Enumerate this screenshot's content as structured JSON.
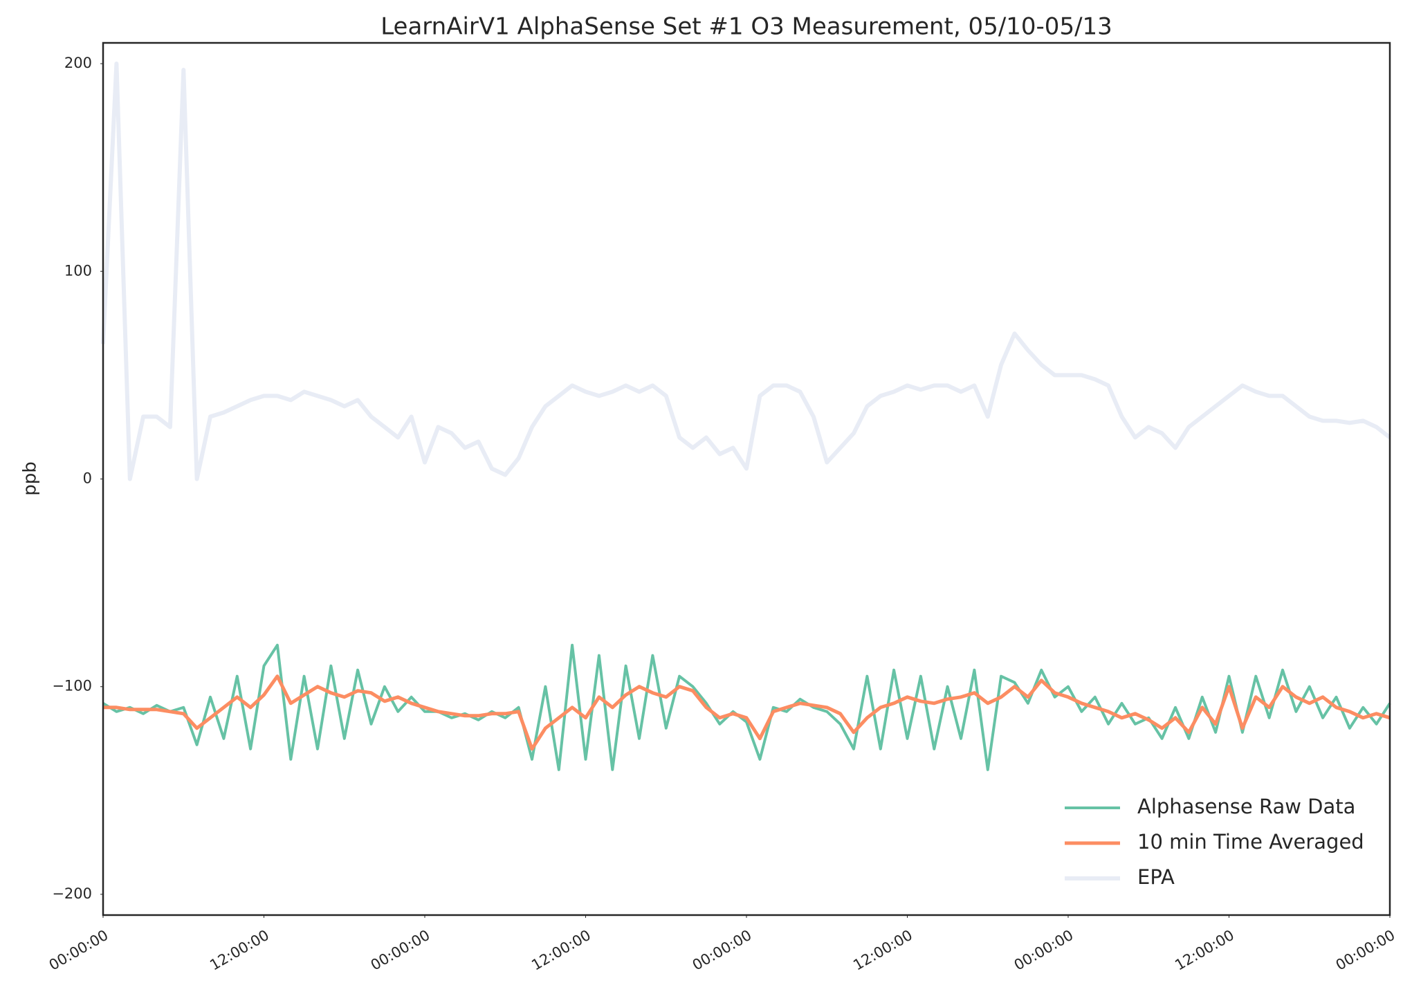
{
  "chart_data": {
    "type": "line",
    "title": "LearnAirV1 AlphaSense Set #1 O3 Measurement, 05/10-05/13",
    "y_label": "ppb",
    "x": [
      0,
      1,
      2,
      3,
      4,
      5,
      6,
      7,
      8,
      9,
      10,
      11,
      12,
      13,
      14,
      15,
      16,
      17,
      18,
      19,
      20,
      21,
      22,
      23,
      24,
      25,
      26,
      27,
      28,
      29,
      30,
      31,
      32,
      33,
      34,
      35,
      36,
      37,
      38,
      39,
      40,
      41,
      42,
      43,
      44,
      45,
      46,
      47,
      48,
      49,
      50,
      51,
      52,
      53,
      54,
      55,
      56,
      57,
      58,
      59,
      60,
      61,
      62,
      63,
      64,
      65,
      66,
      67,
      68,
      69,
      70,
      71,
      72,
      73,
      74,
      75,
      76,
      77,
      78,
      79,
      80,
      81,
      82,
      83,
      84,
      85,
      86,
      87,
      88,
      89,
      90,
      91,
      92,
      93,
      94,
      95,
      96
    ],
    "xlim": [
      0,
      96
    ],
    "xticks": [
      {
        "value": 0,
        "label": "00:00:00"
      },
      {
        "value": 12,
        "label": "12:00:00"
      },
      {
        "value": 24,
        "label": "00:00:00"
      },
      {
        "value": 36,
        "label": "12:00:00"
      },
      {
        "value": 48,
        "label": "00:00:00"
      },
      {
        "value": 60,
        "label": "12:00:00"
      },
      {
        "value": 72,
        "label": "00:00:00"
      },
      {
        "value": 84,
        "label": "12:00:00"
      },
      {
        "value": 96,
        "label": "00:00:00"
      }
    ],
    "ylim": [
      -210,
      210
    ],
    "yticks": [
      {
        "value": -200,
        "label": "−200"
      },
      {
        "value": -100,
        "label": "−100"
      },
      0,
      100,
      200
    ],
    "legend": "lower right",
    "series": [
      {
        "name": "Alphasense Raw Data",
        "color": "#66c2a5",
        "width": 4,
        "values": [
          -108,
          -112,
          -110,
          -113,
          -109,
          -112,
          -110,
          -128,
          -105,
          -125,
          -95,
          -130,
          -90,
          -80,
          -135,
          -95,
          -130,
          -90,
          -125,
          -92,
          -118,
          -100,
          -112,
          -105,
          -112,
          -112,
          -115,
          -113,
          -116,
          -112,
          -115,
          -110,
          -135,
          -100,
          -140,
          -80,
          -135,
          -85,
          -140,
          -90,
          -125,
          -85,
          -120,
          -95,
          -100,
          -108,
          -118,
          -112,
          -117,
          -135,
          -110,
          -112,
          -106,
          -110,
          -112,
          -118,
          -130,
          -95,
          -130,
          -92,
          -125,
          -95,
          -130,
          -100,
          -125,
          -92,
          -140,
          -95,
          -98,
          -108,
          -92,
          -105,
          -100,
          -112,
          -105,
          -118,
          -108,
          -118,
          -115,
          -125,
          -110,
          -125,
          -105,
          -122,
          -95,
          -122,
          -95,
          -115,
          -92,
          -112,
          -100,
          -115,
          -105,
          -120,
          -110,
          -118,
          -108
        ]
      },
      {
        "name": "10 min Time Averaged",
        "color": "#fc8d62",
        "width": 5,
        "values": [
          -110,
          -110,
          -111,
          -111,
          -111,
          -112,
          -113,
          -120,
          -115,
          -110,
          -105,
          -110,
          -104,
          -95,
          -108,
          -104,
          -100,
          -103,
          -105,
          -102,
          -103,
          -107,
          -105,
          -108,
          -110,
          -112,
          -113,
          -114,
          -114,
          -113,
          -113,
          -112,
          -130,
          -120,
          -115,
          -110,
          -115,
          -105,
          -110,
          -104,
          -100,
          -103,
          -105,
          -100,
          -102,
          -110,
          -115,
          -113,
          -115,
          -125,
          -112,
          -110,
          -108,
          -109,
          -110,
          -113,
          -122,
          -115,
          -110,
          -108,
          -105,
          -107,
          -108,
          -106,
          -105,
          -103,
          -108,
          -105,
          -100,
          -105,
          -97,
          -103,
          -105,
          -108,
          -110,
          -112,
          -115,
          -113,
          -116,
          -120,
          -115,
          -122,
          -110,
          -118,
          -100,
          -120,
          -105,
          -110,
          -100,
          -105,
          -108,
          -105,
          -110,
          -112,
          -115,
          -113,
          -115
        ]
      },
      {
        "name": "EPA",
        "color": "#e8ecf5",
        "width": 6,
        "values": [
          65,
          200,
          0,
          30,
          30,
          25,
          197,
          0,
          30,
          32,
          35,
          38,
          40,
          40,
          38,
          42,
          40,
          38,
          35,
          38,
          30,
          25,
          20,
          30,
          8,
          25,
          22,
          15,
          18,
          5,
          2,
          10,
          25,
          35,
          40,
          45,
          42,
          40,
          42,
          45,
          42,
          45,
          40,
          20,
          15,
          20,
          12,
          15,
          5,
          40,
          45,
          45,
          42,
          30,
          8,
          15,
          22,
          35,
          40,
          42,
          45,
          43,
          45,
          45,
          42,
          45,
          30,
          55,
          70,
          62,
          55,
          50,
          50,
          50,
          48,
          45,
          30,
          20,
          25,
          22,
          15,
          25,
          30,
          35,
          40,
          45,
          42,
          40,
          40,
          35,
          30,
          28,
          28,
          27,
          28,
          25,
          20
        ]
      }
    ]
  }
}
